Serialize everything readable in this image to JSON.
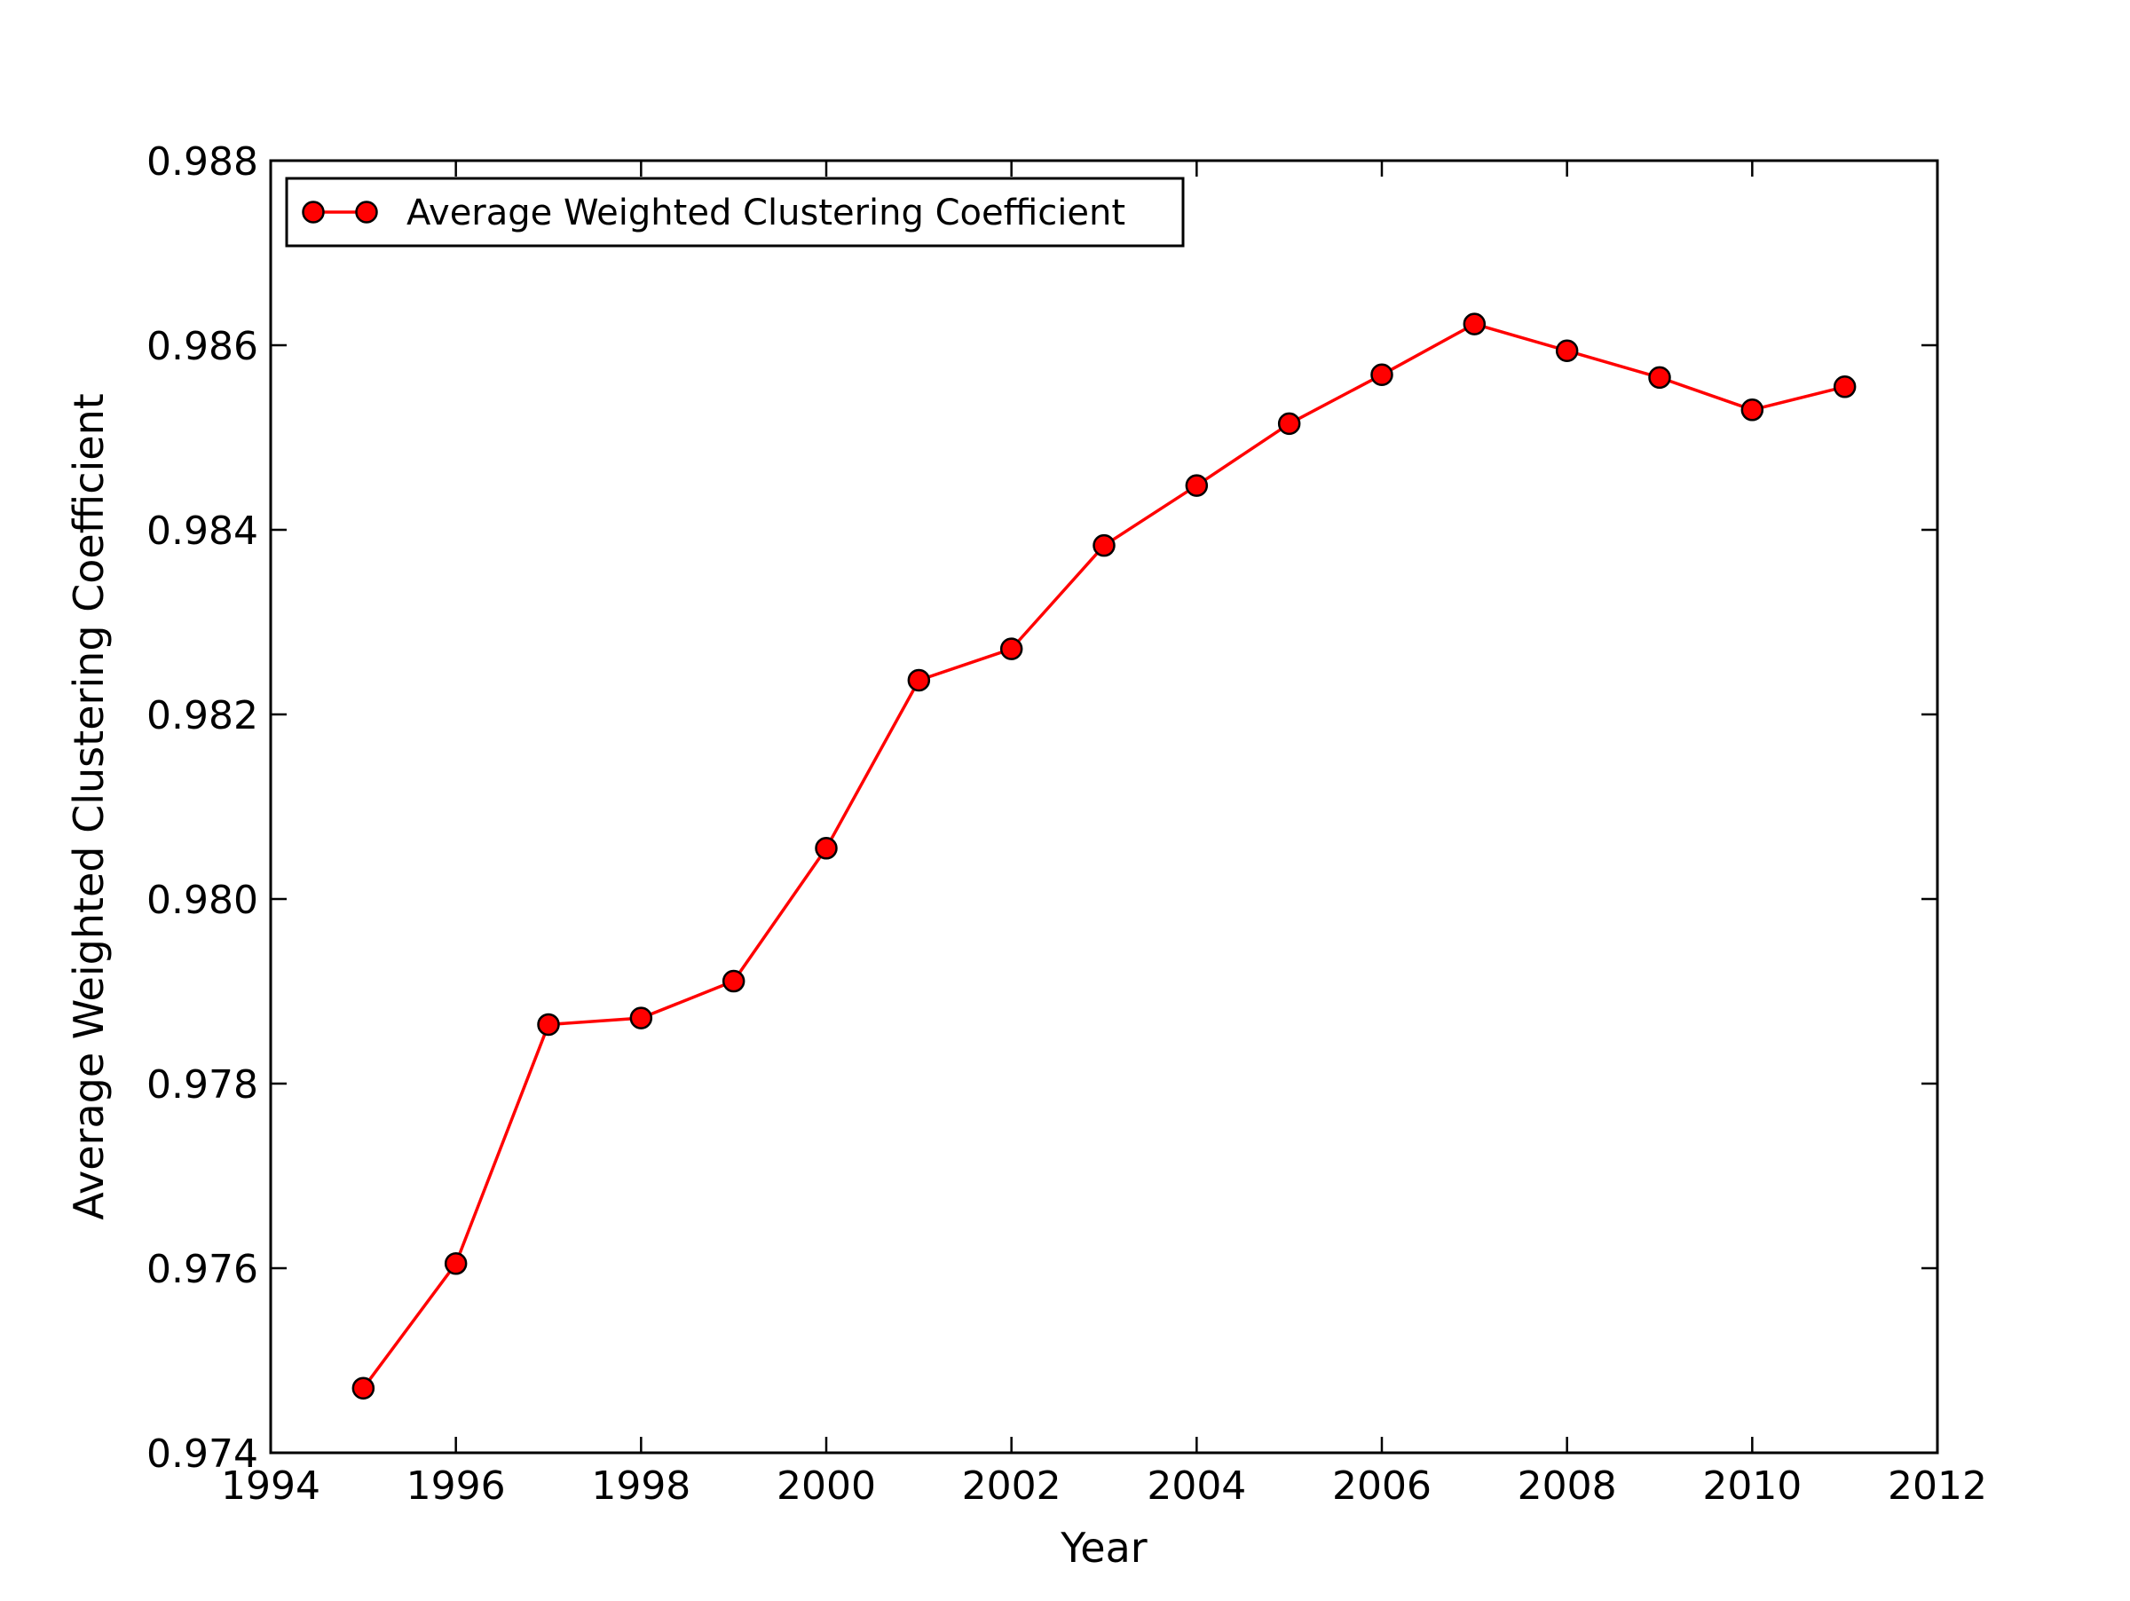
{
  "chart_data": {
    "type": "line",
    "title": "",
    "xlabel": "Year",
    "ylabel": "Average Weighted Clustering Coefficient",
    "xlim": [
      1994,
      2012
    ],
    "ylim": [
      0.974,
      0.988
    ],
    "x_ticks": [
      "1994",
      "1996",
      "1998",
      "2000",
      "2002",
      "2004",
      "2006",
      "2008",
      "2010",
      "2012"
    ],
    "y_ticks": [
      "0.974",
      "0.976",
      "0.978",
      "0.980",
      "0.982",
      "0.984",
      "0.986",
      "0.988"
    ],
    "grid": false,
    "legend": {
      "position": "top-left",
      "entries": [
        "Average Weighted Clustering Coefficient"
      ]
    },
    "series": [
      {
        "name": "Average Weighted Clustering Coefficient",
        "color": "#ff0000",
        "marker": "circle",
        "x": [
          1995,
          1996,
          1997,
          1998,
          1999,
          2000,
          2001,
          2002,
          2003,
          2004,
          2005,
          2006,
          2007,
          2008,
          2009,
          2010,
          2011
        ],
        "y": [
          0.9747,
          0.97605,
          0.97864,
          0.97871,
          0.97911,
          0.98055,
          0.98237,
          0.98271,
          0.98383,
          0.98448,
          0.98515,
          0.98568,
          0.98623,
          0.98594,
          0.98565,
          0.9853,
          0.98555
        ]
      }
    ]
  }
}
